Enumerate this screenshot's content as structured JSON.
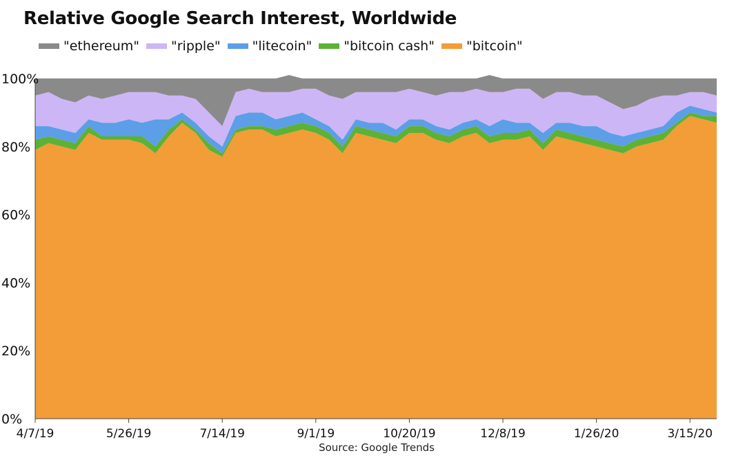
{
  "chart_data": {
    "type": "area",
    "stacked": true,
    "percent": true,
    "title": "Relative Google Search Interest, Worldwide",
    "source": "Source: Google Trends",
    "ylim": [
      0,
      100
    ],
    "yticks": [
      0,
      20,
      40,
      60,
      80,
      100
    ],
    "ytick_labels": [
      "0%",
      "20%",
      "40%",
      "60%",
      "80%",
      "100%"
    ],
    "x": [
      "4/7/19",
      "4/14/19",
      "4/21/19",
      "4/28/19",
      "5/5/19",
      "5/12/19",
      "5/19/19",
      "5/26/19",
      "6/2/19",
      "6/9/19",
      "6/16/19",
      "6/23/19",
      "6/30/19",
      "7/7/19",
      "7/14/19",
      "7/21/19",
      "7/28/19",
      "8/4/19",
      "8/11/19",
      "8/18/19",
      "8/25/19",
      "9/1/19",
      "9/8/19",
      "9/15/19",
      "9/22/19",
      "9/29/19",
      "10/6/19",
      "10/13/19",
      "10/20/19",
      "10/27/19",
      "11/3/19",
      "11/10/19",
      "11/17/19",
      "11/24/19",
      "12/1/19",
      "12/8/19",
      "12/15/19",
      "12/22/19",
      "12/29/19",
      "1/5/20",
      "1/12/20",
      "1/19/20",
      "1/26/20",
      "2/2/20",
      "2/9/20",
      "2/16/20",
      "2/23/20",
      "3/1/20",
      "3/8/20",
      "3/15/20",
      "3/22/20",
      "3/29/20"
    ],
    "xticks": [
      "4/7/19",
      "5/26/19",
      "7/14/19",
      "9/1/19",
      "10/20/19",
      "12/8/19",
      "1/26/20",
      "3/15/20"
    ],
    "grid": true,
    "legend_position": "top",
    "series": [
      {
        "name": "\"bitcoin\"",
        "color": "#F29D38",
        "values": [
          79,
          81,
          80,
          79,
          84,
          82,
          82,
          82,
          81,
          78,
          83,
          87,
          84,
          79,
          77,
          84,
          85,
          85,
          83,
          84,
          85,
          84,
          82,
          78,
          84,
          83,
          82,
          81,
          84,
          84,
          82,
          81,
          83,
          84,
          81,
          82,
          82,
          83,
          79,
          83,
          82,
          81,
          80,
          79,
          78,
          80,
          81,
          82,
          86,
          89,
          88,
          87
        ]
      },
      {
        "name": "\"bitcoin cash\"",
        "color": "#5DB135",
        "values": [
          3,
          2,
          2,
          2,
          2,
          1,
          1,
          1,
          2,
          2,
          2,
          1,
          1,
          2,
          1,
          1,
          1,
          1,
          2,
          2,
          2,
          2,
          2,
          2,
          2,
          2,
          2,
          2,
          2,
          2,
          2,
          2,
          2,
          2,
          2,
          2,
          2,
          2,
          2,
          2,
          2,
          2,
          2,
          2,
          2,
          2,
          2,
          2,
          1,
          1,
          1,
          2
        ]
      },
      {
        "name": "\"litecoin\"",
        "color": "#5C9EE8",
        "values": [
          4,
          3,
          3,
          3,
          2,
          4,
          4,
          5,
          4,
          8,
          3,
          2,
          2,
          2,
          2,
          4,
          4,
          4,
          3,
          3,
          3,
          2,
          2,
          2,
          2,
          2,
          3,
          2,
          2,
          2,
          2,
          2,
          2,
          2,
          3,
          4,
          3,
          2,
          3,
          2,
          3,
          3,
          4,
          3,
          3,
          2,
          2,
          2,
          3,
          2,
          2,
          1
        ]
      },
      {
        "name": "\"ripple\"",
        "color": "#CDB6F5",
        "values": [
          9,
          10,
          9,
          9,
          7,
          7,
          8,
          8,
          9,
          8,
          7,
          5,
          7,
          7,
          6,
          7,
          7,
          6,
          8,
          7,
          7,
          9,
          9,
          12,
          8,
          9,
          9,
          11,
          9,
          8,
          9,
          11,
          9,
          9,
          10,
          8,
          10,
          10,
          10,
          9,
          9,
          9,
          9,
          9,
          8,
          8,
          9,
          9,
          5,
          4,
          5,
          5
        ]
      },
      {
        "name": "\"ethereum\"",
        "color": "#8A8A8A",
        "values": [
          5,
          4,
          6,
          7,
          5,
          6,
          5,
          4,
          4,
          4,
          5,
          5,
          6,
          10,
          14,
          4,
          3,
          4,
          4,
          5,
          3,
          3,
          5,
          6,
          4,
          4,
          4,
          4,
          3,
          4,
          5,
          4,
          4,
          3,
          5,
          4,
          3,
          3,
          6,
          4,
          4,
          5,
          5,
          7,
          9,
          8,
          6,
          5,
          5,
          4,
          4,
          5
        ]
      }
    ]
  }
}
